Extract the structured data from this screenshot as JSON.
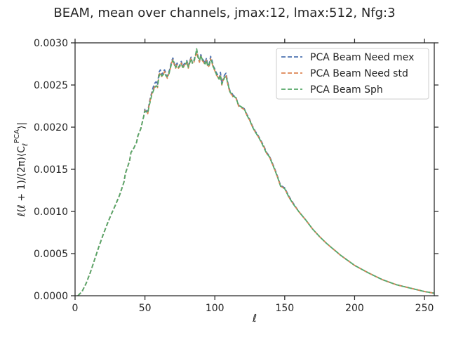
{
  "chart_data": {
    "type": "line",
    "title": "BEAM, mean over channels, jmax:12, lmax:512, Nfg:3",
    "xlabel": "ℓ",
    "ylabel_parts": [
      "ℓ(ℓ + 1)/(2π)⟨C",
      "ℓ",
      "PCA",
      "⟩|"
    ],
    "xlim": [
      0,
      257
    ],
    "ylim": [
      0,
      0.003
    ],
    "xticks": [
      "0",
      "50",
      "100",
      "150",
      "200",
      "250"
    ],
    "yticks": [
      "0.0000",
      "0.0005",
      "0.0010",
      "0.0015",
      "0.0020",
      "0.0025",
      "0.0030"
    ],
    "grid": false,
    "legend_position": "upper right",
    "colors": {
      "need_mex": "#4c72b0",
      "need_std": "#dd8452",
      "sph": "#55a868"
    },
    "x": [
      2,
      5,
      8,
      11,
      14,
      17,
      20,
      23,
      26,
      29,
      32,
      34,
      35,
      36,
      38,
      39,
      40,
      42,
      44,
      45,
      47,
      49,
      50,
      52,
      53,
      54,
      55,
      56,
      57,
      58,
      59,
      60,
      61,
      62,
      63,
      64,
      65,
      66,
      67,
      68,
      69,
      70,
      71,
      72,
      73,
      74,
      75,
      76,
      77,
      78,
      79,
      80,
      81,
      82,
      83,
      84,
      85,
      86,
      87,
      88,
      89,
      90,
      91,
      92,
      93,
      94,
      95,
      96,
      97,
      98,
      99,
      100,
      101,
      102,
      103,
      104,
      105,
      106,
      107,
      108,
      109,
      110,
      111,
      112,
      113,
      115,
      117,
      119,
      121,
      123,
      125,
      127,
      129,
      131,
      133,
      135,
      137,
      139,
      141,
      143,
      145,
      147,
      150,
      153,
      156,
      160,
      165,
      170,
      175,
      180,
      185,
      190,
      195,
      200,
      210,
      220,
      230,
      240,
      250,
      257
    ],
    "series": [
      {
        "name": "PCA Beam Need mex",
        "values": [
          0.0,
          5e-05,
          0.00015,
          0.00028,
          0.00043,
          0.00058,
          0.00072,
          0.00085,
          0.00097,
          0.00108,
          0.0012,
          0.0013,
          0.00135,
          0.00145,
          0.00155,
          0.0016,
          0.0017,
          0.00175,
          0.00182,
          0.0019,
          0.00198,
          0.00212,
          0.00222,
          0.00218,
          0.00228,
          0.00236,
          0.00242,
          0.00248,
          0.00252,
          0.00254,
          0.0025,
          0.00265,
          0.00268,
          0.00262,
          0.00266,
          0.00268,
          0.00264,
          0.0026,
          0.00265,
          0.0027,
          0.00278,
          0.00282,
          0.00276,
          0.00272,
          0.00276,
          0.00271,
          0.00274,
          0.00278,
          0.00272,
          0.00275,
          0.00276,
          0.00279,
          0.00272,
          0.00278,
          0.00283,
          0.00276,
          0.00279,
          0.00285,
          0.0029,
          0.00284,
          0.00278,
          0.00286,
          0.00281,
          0.00279,
          0.00276,
          0.00282,
          0.00273,
          0.00275,
          0.00284,
          0.00279,
          0.00272,
          0.00269,
          0.00265,
          0.00262,
          0.00258,
          0.00265,
          0.00252,
          0.00258,
          0.00262,
          0.00264,
          0.00255,
          0.00248,
          0.00242,
          0.00241,
          0.00238,
          0.00236,
          0.00226,
          0.00224,
          0.00222,
          0.00215,
          0.00209,
          0.00201,
          0.00195,
          0.0019,
          0.00184,
          0.00178,
          0.0017,
          0.00166,
          0.00158,
          0.0015,
          0.00141,
          0.00131,
          0.00128,
          0.00118,
          0.0011,
          0.001,
          0.0009,
          0.00079,
          0.0007,
          0.00062,
          0.00055,
          0.00048,
          0.00042,
          0.00036,
          0.00027,
          0.00019,
          0.00013,
          9e-05,
          5e-05,
          3e-05
        ]
      },
      {
        "name": "PCA Beam Need std",
        "values": [
          0.0,
          5e-05,
          0.00015,
          0.00028,
          0.00043,
          0.00058,
          0.00072,
          0.00085,
          0.00097,
          0.00108,
          0.0012,
          0.0013,
          0.00135,
          0.00145,
          0.00155,
          0.0016,
          0.0017,
          0.00175,
          0.00182,
          0.0019,
          0.00198,
          0.00212,
          0.0022,
          0.00216,
          0.00226,
          0.00234,
          0.0024,
          0.00244,
          0.00248,
          0.0025,
          0.00247,
          0.00262,
          0.00265,
          0.0026,
          0.00262,
          0.00266,
          0.00262,
          0.00258,
          0.00263,
          0.00268,
          0.00276,
          0.0028,
          0.00274,
          0.0027,
          0.00274,
          0.0027,
          0.00272,
          0.00276,
          0.0027,
          0.00273,
          0.00275,
          0.00277,
          0.0027,
          0.00277,
          0.00282,
          0.00275,
          0.00277,
          0.00283,
          0.00289,
          0.00282,
          0.00277,
          0.00284,
          0.00279,
          0.00277,
          0.00274,
          0.0028,
          0.00271,
          0.00273,
          0.00281,
          0.00276,
          0.0027,
          0.00267,
          0.00262,
          0.0026,
          0.00256,
          0.00262,
          0.0025,
          0.00256,
          0.0026,
          0.00261,
          0.00253,
          0.00246,
          0.0024,
          0.00239,
          0.00236,
          0.00235,
          0.00225,
          0.00223,
          0.00221,
          0.00214,
          0.00208,
          0.002,
          0.00194,
          0.00189,
          0.00183,
          0.00177,
          0.00169,
          0.00165,
          0.00157,
          0.00149,
          0.0014,
          0.0013,
          0.00127,
          0.00117,
          0.00109,
          0.001,
          0.0009,
          0.00079,
          0.0007,
          0.00062,
          0.00055,
          0.00048,
          0.00042,
          0.00036,
          0.00027,
          0.00019,
          0.00013,
          9e-05,
          5e-05,
          3e-05
        ]
      },
      {
        "name": "PCA Beam Sph",
        "values": [
          0.0,
          5e-05,
          0.00015,
          0.00028,
          0.00043,
          0.00058,
          0.00072,
          0.00085,
          0.00097,
          0.00108,
          0.0012,
          0.0013,
          0.00135,
          0.00145,
          0.00155,
          0.0016,
          0.0017,
          0.00175,
          0.00182,
          0.0019,
          0.00198,
          0.00212,
          0.00219,
          0.00217,
          0.00225,
          0.00232,
          0.00239,
          0.00243,
          0.00247,
          0.00249,
          0.00248,
          0.0026,
          0.00264,
          0.00261,
          0.00262,
          0.00264,
          0.00261,
          0.0026,
          0.00262,
          0.00269,
          0.00275,
          0.00279,
          0.00275,
          0.00271,
          0.00273,
          0.00271,
          0.00273,
          0.00275,
          0.00271,
          0.00272,
          0.00274,
          0.00278,
          0.00271,
          0.00276,
          0.00281,
          0.00276,
          0.00278,
          0.00284,
          0.00293,
          0.00283,
          0.00279,
          0.00285,
          0.0028,
          0.00278,
          0.00275,
          0.00279,
          0.00272,
          0.00274,
          0.0028,
          0.00277,
          0.00271,
          0.00268,
          0.00263,
          0.00261,
          0.00257,
          0.00261,
          0.00251,
          0.00255,
          0.00259,
          0.0026,
          0.00254,
          0.00247,
          0.00241,
          0.0024,
          0.00237,
          0.00235,
          0.00226,
          0.00224,
          0.00222,
          0.00214,
          0.00208,
          0.002,
          0.00194,
          0.00189,
          0.00183,
          0.00176,
          0.00169,
          0.00165,
          0.00157,
          0.00149,
          0.0014,
          0.0013,
          0.00127,
          0.00117,
          0.00109,
          0.001,
          0.0009,
          0.00079,
          0.0007,
          0.00062,
          0.00055,
          0.00048,
          0.00042,
          0.00036,
          0.00027,
          0.00019,
          0.00013,
          9e-05,
          5e-05,
          3e-05
        ]
      }
    ]
  }
}
